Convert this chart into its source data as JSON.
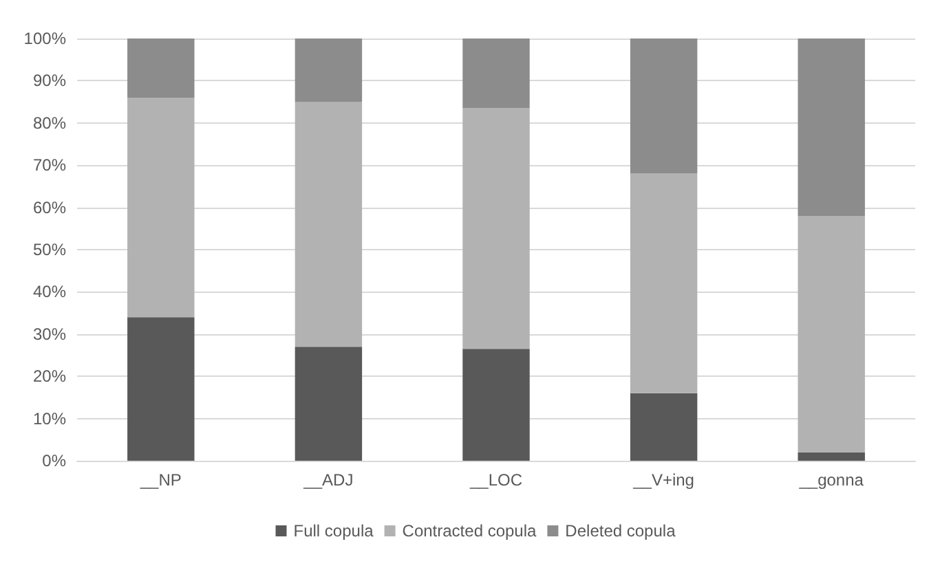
{
  "chart_data": {
    "type": "bar",
    "stacked": true,
    "categories": [
      "__NP",
      "__ADJ",
      "__LOC",
      "__V+ing",
      "__gonna"
    ],
    "series": [
      {
        "name": "Full copula",
        "color": "#595959",
        "values": [
          34,
          27,
          26.5,
          16,
          2
        ]
      },
      {
        "name": "Contracted copula",
        "color": "#b2b2b2",
        "values": [
          52,
          58,
          57,
          52,
          56
        ]
      },
      {
        "name": "Deleted copula",
        "color": "#8c8c8c",
        "values": [
          14,
          15,
          16.5,
          32,
          42
        ]
      }
    ],
    "ylim": [
      0,
      100
    ],
    "yticks": [
      {
        "value": 0,
        "label": "0%"
      },
      {
        "value": 10,
        "label": "10%"
      },
      {
        "value": 20,
        "label": "20%"
      },
      {
        "value": 30,
        "label": "30%"
      },
      {
        "value": 40,
        "label": "40%"
      },
      {
        "value": 50,
        "label": "50%"
      },
      {
        "value": 60,
        "label": "60%"
      },
      {
        "value": 70,
        "label": "70%"
      },
      {
        "value": 80,
        "label": "80%"
      },
      {
        "value": 90,
        "label": "90%"
      },
      {
        "value": 100,
        "label": "100%"
      }
    ],
    "grid": "y",
    "legend": "bottom"
  }
}
